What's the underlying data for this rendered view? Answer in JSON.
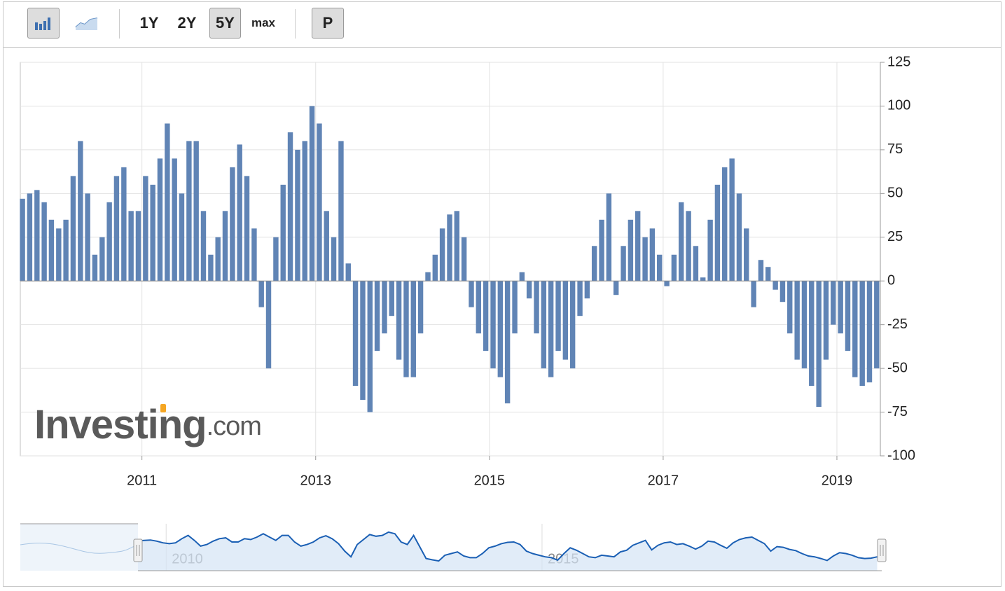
{
  "toolbar": {
    "ranges": [
      "1Y",
      "2Y",
      "5Y",
      "max"
    ],
    "active_range": "5Y",
    "print_button": "P"
  },
  "chart_data": {
    "type": "bar",
    "color": "#6084b5",
    "watermark": {
      "brand": "Investing",
      "suffix": ".com"
    },
    "x": [
      2009.625,
      2009.708,
      2009.792,
      2009.875,
      2009.958,
      2010.042,
      2010.125,
      2010.208,
      2010.292,
      2010.375,
      2010.458,
      2010.542,
      2010.625,
      2010.708,
      2010.792,
      2010.875,
      2010.958,
      2011.042,
      2011.125,
      2011.208,
      2011.292,
      2011.375,
      2011.458,
      2011.542,
      2011.625,
      2011.708,
      2011.792,
      2011.875,
      2011.958,
      2012.042,
      2012.125,
      2012.208,
      2012.292,
      2012.375,
      2012.458,
      2012.542,
      2012.625,
      2012.708,
      2012.792,
      2012.875,
      2012.958,
      2013.042,
      2013.125,
      2013.208,
      2013.292,
      2013.375,
      2013.458,
      2013.542,
      2013.625,
      2013.708,
      2013.792,
      2013.875,
      2013.958,
      2014.042,
      2014.125,
      2014.208,
      2014.292,
      2014.375,
      2014.458,
      2014.542,
      2014.625,
      2014.708,
      2014.792,
      2014.875,
      2014.958,
      2015.042,
      2015.125,
      2015.208,
      2015.292,
      2015.375,
      2015.458,
      2015.542,
      2015.625,
      2015.708,
      2015.792,
      2015.875,
      2015.958,
      2016.042,
      2016.125,
      2016.208,
      2016.292,
      2016.375,
      2016.458,
      2016.542,
      2016.625,
      2016.708,
      2016.792,
      2016.875,
      2016.958,
      2017.042,
      2017.125,
      2017.208,
      2017.292,
      2017.375,
      2017.458,
      2017.542,
      2017.625,
      2017.708,
      2017.792,
      2017.875,
      2017.958,
      2018.042,
      2018.125,
      2018.208,
      2018.292,
      2018.375,
      2018.458,
      2018.542,
      2018.625,
      2018.708,
      2018.792,
      2018.875,
      2018.958,
      2019.042,
      2019.125,
      2019.208,
      2019.292,
      2019.375,
      2019.458
    ],
    "values": [
      47,
      50,
      52,
      45,
      35,
      30,
      35,
      60,
      80,
      50,
      15,
      25,
      45,
      60,
      65,
      40,
      40,
      60,
      55,
      70,
      90,
      70,
      50,
      80,
      80,
      40,
      15,
      25,
      40,
      65,
      78,
      60,
      30,
      -15,
      -50,
      25,
      55,
      85,
      75,
      80,
      100,
      90,
      40,
      25,
      80,
      10,
      -60,
      -68,
      -75,
      -40,
      -30,
      -20,
      -45,
      -55,
      -55,
      -30,
      5,
      15,
      30,
      38,
      40,
      25,
      -15,
      -30,
      -40,
      -50,
      -55,
      -70,
      -30,
      5,
      -10,
      -30,
      -50,
      -55,
      -40,
      -45,
      -50,
      -20,
      -10,
      20,
      35,
      50,
      -8,
      20,
      35,
      40,
      25,
      30,
      15,
      -3,
      15,
      45,
      40,
      20,
      2,
      35,
      55,
      65,
      70,
      50,
      30,
      -15,
      12,
      8,
      -5,
      -12,
      -30,
      -45,
      -50,
      -60,
      -72,
      -45,
      -25,
      -30,
      -40,
      -55,
      -60,
      -58,
      -50
    ],
    "xlim": [
      2009.6,
      2019.5
    ],
    "xticks": [
      2011,
      2013,
      2015,
      2017,
      2019
    ],
    "ylim": [
      -100,
      125
    ],
    "yticks": [
      -100,
      -75,
      -50,
      -25,
      0,
      25,
      50,
      75,
      100,
      125
    ],
    "grid": true,
    "navigator": {
      "xlim": [
        2008.06,
        2019.5
      ],
      "xticks": [
        2010,
        2015
      ],
      "color": "#1a5fb4",
      "fill": "#d4e4f5"
    }
  }
}
